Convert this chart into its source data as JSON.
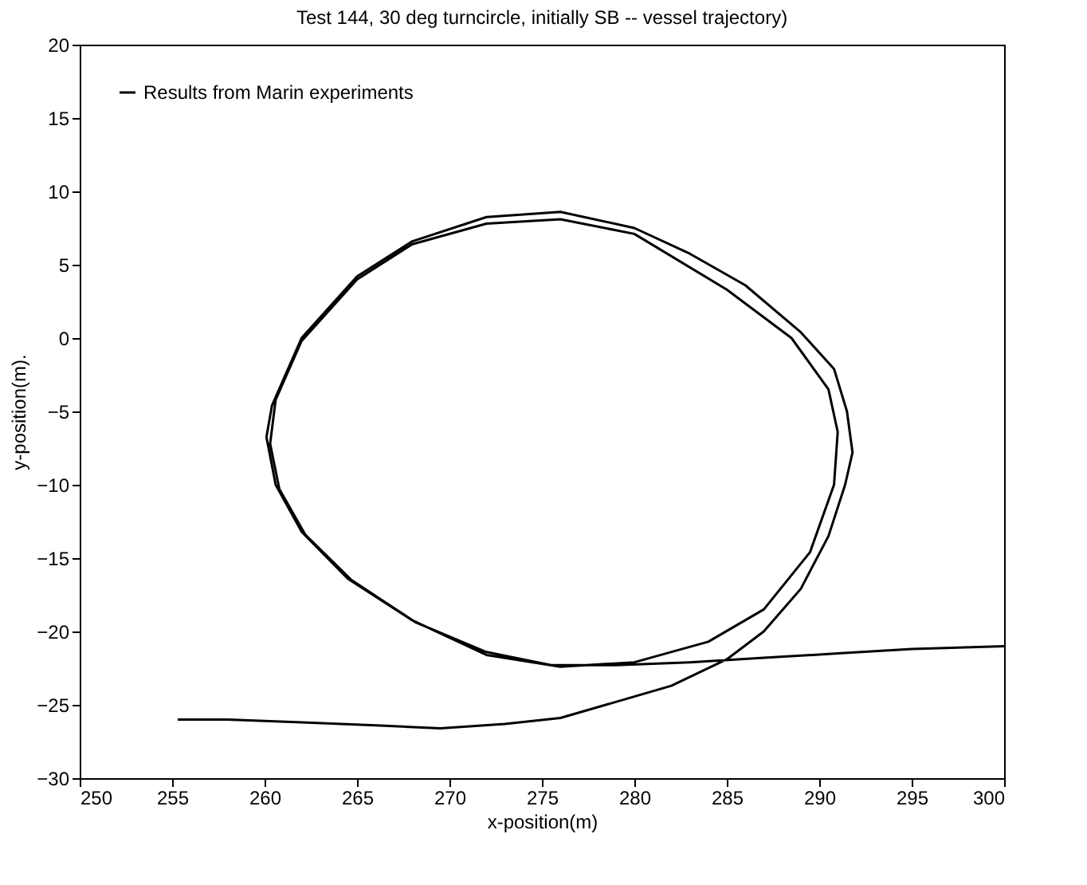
{
  "chart_data": {
    "type": "line",
    "title": "Test 144, 30 deg turncircle, initially SB -- vessel trajectory)",
    "xlabel": "x-position(m)",
    "ylabel": "y-position(m).",
    "xlim": [
      250,
      300
    ],
    "ylim": [
      -30,
      20
    ],
    "xticks": [
      250,
      255,
      260,
      265,
      270,
      275,
      280,
      285,
      290,
      295,
      300
    ],
    "yticks": [
      -30,
      -25,
      -20,
      -15,
      -10,
      -5,
      0,
      5,
      10,
      15,
      20
    ],
    "grid": false,
    "legend": "top left",
    "line_style": "solid",
    "marker": "none",
    "series": [
      {
        "name": "Results from Marin experiments",
        "color": "#000000",
        "x": [
          255.3,
          258,
          262,
          266,
          269.5,
          273,
          276,
          279,
          282,
          285,
          287,
          289,
          290.5,
          291.4,
          291.8,
          291.5,
          290.8,
          289,
          286,
          283,
          280,
          276,
          272,
          268,
          265,
          262,
          260.4,
          260.1,
          260.6,
          262,
          264.5,
          268,
          272,
          276,
          280,
          284,
          287,
          289.5,
          290.8,
          291,
          290.5,
          288.5,
          285,
          280,
          276,
          272,
          268,
          265,
          262,
          260.6,
          260.3,
          260.8,
          262.2,
          264.7,
          268.2,
          272,
          275.5,
          279,
          283,
          287,
          291,
          295,
          300
        ],
        "values": [
          -26.0,
          -26.0,
          -26.2,
          -26.4,
          -26.6,
          -26.3,
          -25.9,
          -24.8,
          -23.7,
          -21.9,
          -20.0,
          -17.1,
          -13.5,
          -10.0,
          -7.8,
          -5.0,
          -2.1,
          0.4,
          3.6,
          5.75,
          7.5,
          8.6,
          8.25,
          6.6,
          4.2,
          0.0,
          -4.6,
          -6.75,
          -10.0,
          -13.2,
          -16.4,
          -19.25,
          -21.6,
          -22.4,
          -22.1,
          -20.7,
          -18.5,
          -14.6,
          -10.0,
          -6.4,
          -3.5,
          0.0,
          3.3,
          7.1,
          8.1,
          7.8,
          6.4,
          4.0,
          -0.2,
          -4.2,
          -7.2,
          -10.3,
          -13.4,
          -16.5,
          -19.4,
          -21.4,
          -22.3,
          -22.3,
          -22.1,
          -21.8,
          -21.5,
          -21.2,
          -21.0
        ]
      }
    ]
  }
}
